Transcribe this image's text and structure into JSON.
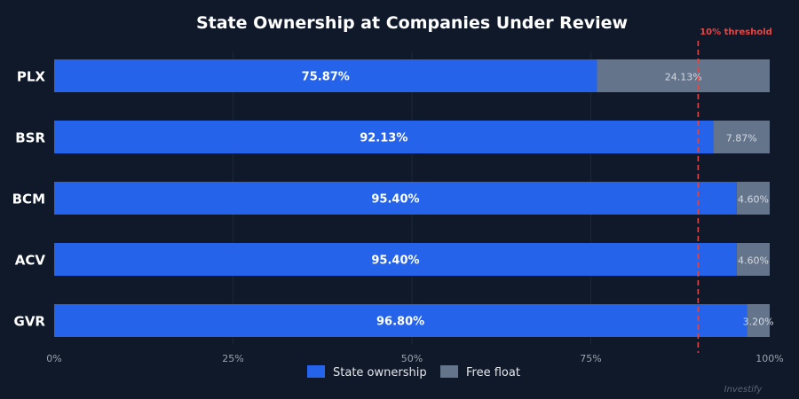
{
  "chart_data": {
    "type": "bar",
    "orientation": "horizontal",
    "stacked": true,
    "title": "State Ownership at Companies Under Review",
    "categories": [
      "PLX",
      "BSR",
      "BCM",
      "ACV",
      "GVR"
    ],
    "series": [
      {
        "name": "State ownership",
        "values": [
          75.87,
          92.13,
          95.4,
          95.4,
          96.8
        ],
        "color": "#2563eb"
      },
      {
        "name": "Free float",
        "values": [
          24.13,
          7.87,
          4.6,
          4.6,
          3.2
        ],
        "color": "#64748b"
      }
    ],
    "value_labels": {
      "state": [
        "75.87%",
        "92.13%",
        "95.40%",
        "95.40%",
        "96.80%"
      ],
      "free": [
        "24.13%",
        "7.87%",
        "4.60%",
        "4.60%",
        "3.20%"
      ]
    },
    "xlim": [
      0,
      100
    ],
    "x_ticks": [
      0,
      25,
      50,
      75,
      100
    ],
    "x_tick_labels": [
      "0%",
      "25%",
      "50%",
      "75%",
      "100%"
    ],
    "threshold": {
      "value": 90,
      "label": "10% threshold",
      "color": "#e04848"
    },
    "legend": {
      "position": "bottom-center",
      "entries": [
        "State ownership",
        "Free float"
      ]
    },
    "watermark": "Investify",
    "grid": false
  }
}
